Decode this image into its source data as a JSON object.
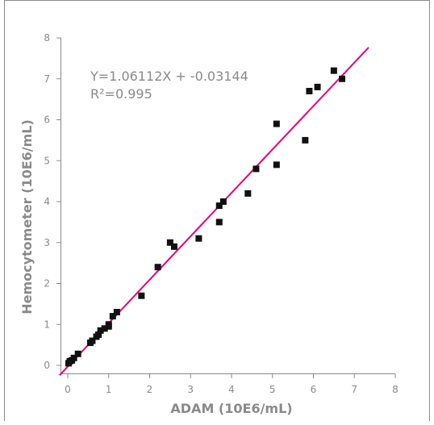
{
  "chart_data": {
    "type": "scatter",
    "title": "",
    "xlabel": "ADAM (10E6/mL)",
    "ylabel": "Hemocytometer (10E6/mL)",
    "xlim": [
      0,
      8
    ],
    "ylim": [
      0,
      8
    ],
    "xticks": [
      "0",
      "1",
      "2",
      "3",
      "4",
      "5",
      "6",
      "7",
      "8"
    ],
    "yticks": [
      "0",
      "1",
      "2",
      "3",
      "4",
      "5",
      "6",
      "7",
      "8"
    ],
    "grid": false,
    "annotations": {
      "equation": "Y=1.06112X + -0.03144",
      "r_squared": "R²=0.995"
    },
    "colors": {
      "points": "#111111",
      "fit_line": "#e6007e",
      "axes": "#8a8a8a",
      "frame": "#8a8a8a"
    },
    "fit_line": {
      "slope": 1.06112,
      "intercept": -0.03144,
      "x_range": [
        -0.2,
        7.35
      ]
    },
    "points": [
      {
        "x": 0.02,
        "y": 0.05
      },
      {
        "x": 0.05,
        "y": 0.1
      },
      {
        "x": 0.1,
        "y": 0.12
      },
      {
        "x": 0.15,
        "y": 0.18
      },
      {
        "x": 0.25,
        "y": 0.28
      },
      {
        "x": 0.55,
        "y": 0.55
      },
      {
        "x": 0.6,
        "y": 0.6
      },
      {
        "x": 0.7,
        "y": 0.7
      },
      {
        "x": 0.75,
        "y": 0.75
      },
      {
        "x": 0.8,
        "y": 0.85
      },
      {
        "x": 0.9,
        "y": 0.9
      },
      {
        "x": 1.0,
        "y": 0.95
      },
      {
        "x": 1.0,
        "y": 1.0
      },
      {
        "x": 1.1,
        "y": 1.2
      },
      {
        "x": 1.2,
        "y": 1.3
      },
      {
        "x": 1.8,
        "y": 1.7
      },
      {
        "x": 2.2,
        "y": 2.4
      },
      {
        "x": 2.5,
        "y": 3.0
      },
      {
        "x": 2.6,
        "y": 2.9
      },
      {
        "x": 3.2,
        "y": 3.1
      },
      {
        "x": 3.7,
        "y": 3.5
      },
      {
        "x": 3.7,
        "y": 3.9
      },
      {
        "x": 3.8,
        "y": 4.0
      },
      {
        "x": 4.4,
        "y": 4.2
      },
      {
        "x": 4.6,
        "y": 4.8
      },
      {
        "x": 5.1,
        "y": 5.9
      },
      {
        "x": 5.1,
        "y": 4.9
      },
      {
        "x": 5.8,
        "y": 5.5
      },
      {
        "x": 5.9,
        "y": 6.7
      },
      {
        "x": 6.1,
        "y": 6.8
      },
      {
        "x": 6.5,
        "y": 7.2
      },
      {
        "x": 6.7,
        "y": 7.0
      }
    ]
  }
}
